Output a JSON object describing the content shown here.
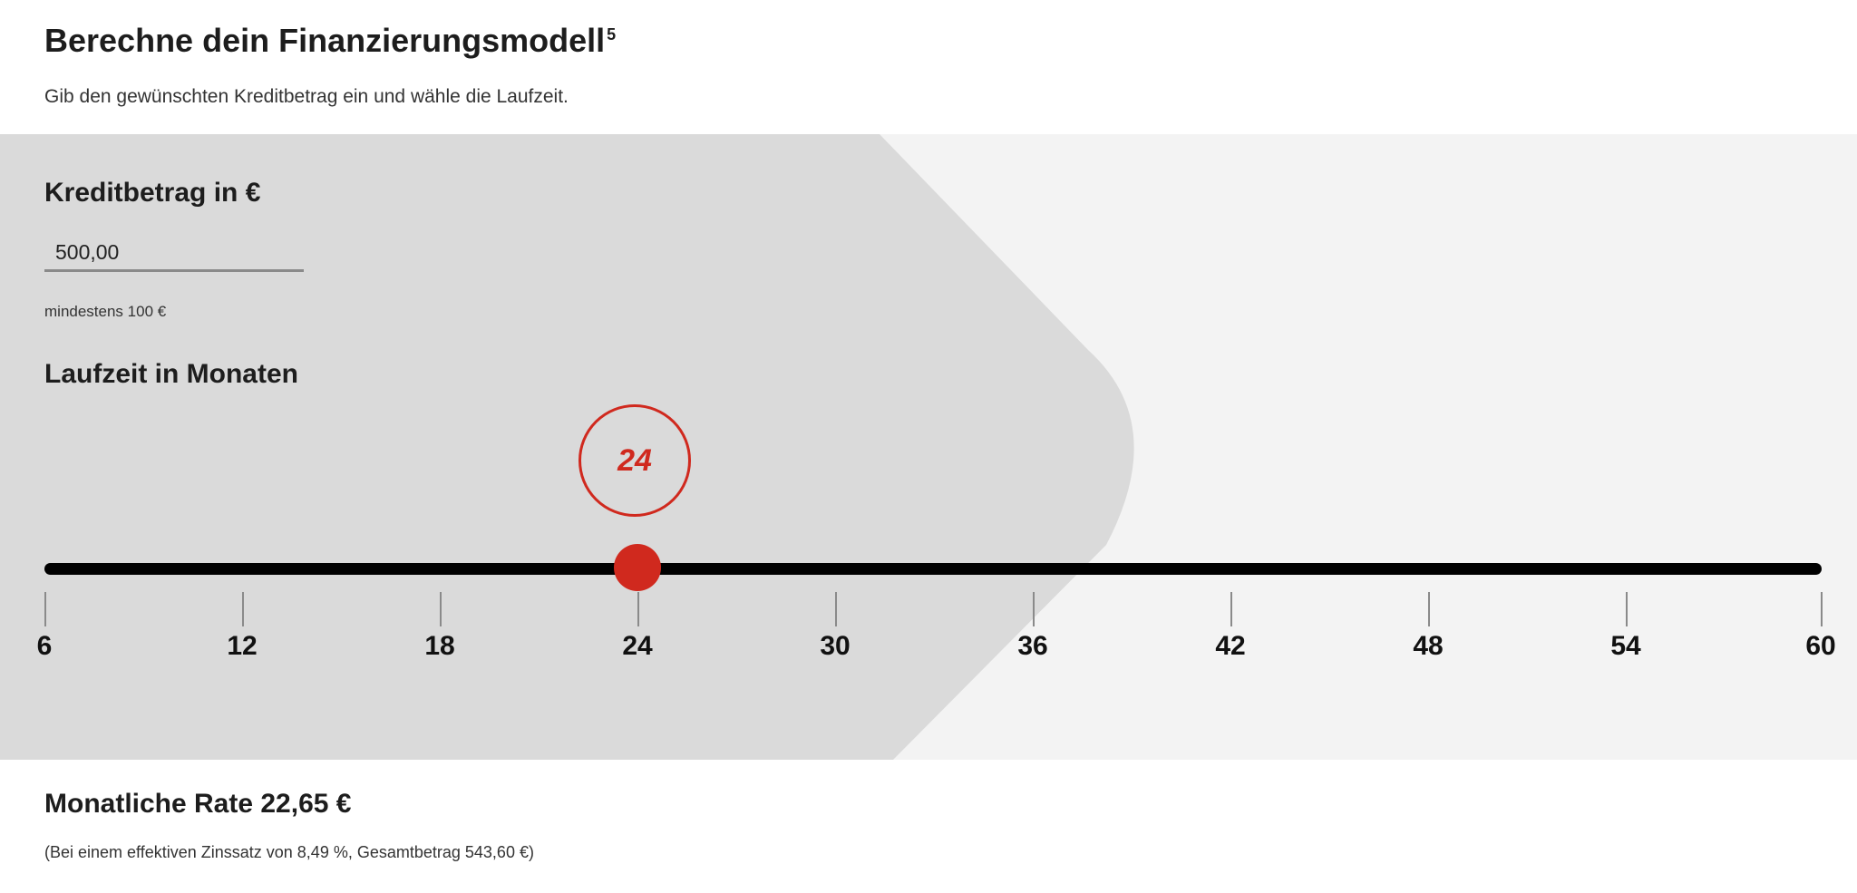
{
  "header": {
    "title": "Berechne dein Finanzierungsmodell",
    "footnote": "5",
    "subtitle": "Gib den gewünschten Kreditbetrag ein und wähle die Laufzeit."
  },
  "amount": {
    "label": "Kreditbetrag in €",
    "value": "500,00",
    "hint": "mindestens 100 €"
  },
  "term": {
    "label": "Laufzeit in Monaten",
    "selected": "24",
    "min": 6,
    "max": 60,
    "ticks": [
      "6",
      "12",
      "18",
      "24",
      "30",
      "36",
      "42",
      "48",
      "54",
      "60"
    ]
  },
  "result": {
    "rate_text": "Monatliche Rate 22,65 €",
    "detail_text": "(Bei einem effektiven Zinssatz von 8,49 %, Gesamtbetrag 543,60 €)"
  },
  "colors": {
    "accent": "#d0291e",
    "panel_light": "#f3f3f3",
    "panel_dark": "#dadada",
    "track": "#000000"
  }
}
